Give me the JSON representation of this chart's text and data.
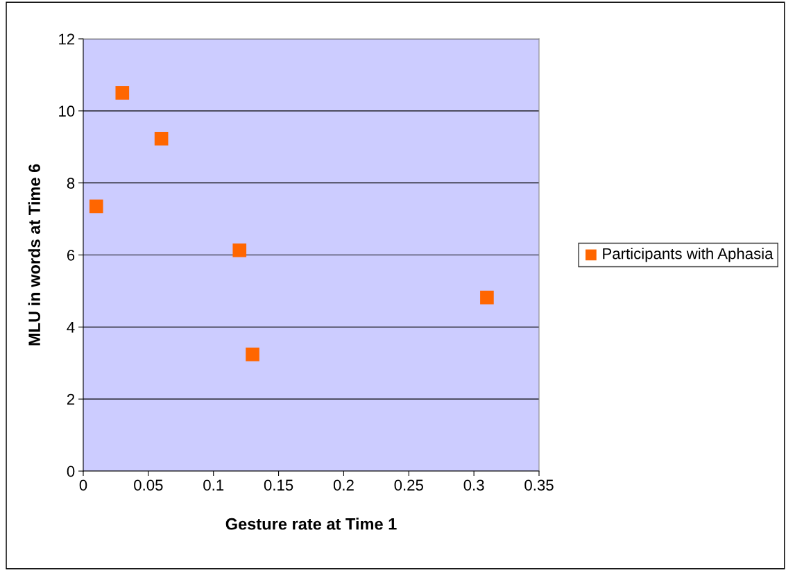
{
  "chart_data": {
    "type": "scatter",
    "xlabel": "Gesture rate at Time 1",
    "ylabel": "MLU in words at Time 6",
    "x": [
      0.01,
      0.03,
      0.06,
      0.12,
      0.13,
      0.31
    ],
    "series": [
      {
        "name": "Participants with Aphasia",
        "color": "#ff6600",
        "values": [
          7.35,
          10.5,
          9.23,
          6.13,
          3.24,
          4.82
        ]
      }
    ],
    "xlim": [
      0,
      0.35
    ],
    "xticks": [
      0,
      0.05,
      0.1,
      0.15,
      0.2,
      0.25,
      0.3,
      0.35
    ],
    "ylim": [
      0,
      12
    ],
    "yticks": [
      0,
      2,
      4,
      6,
      8,
      10,
      12
    ],
    "grid": "y",
    "legend": "right",
    "marker": "square"
  }
}
